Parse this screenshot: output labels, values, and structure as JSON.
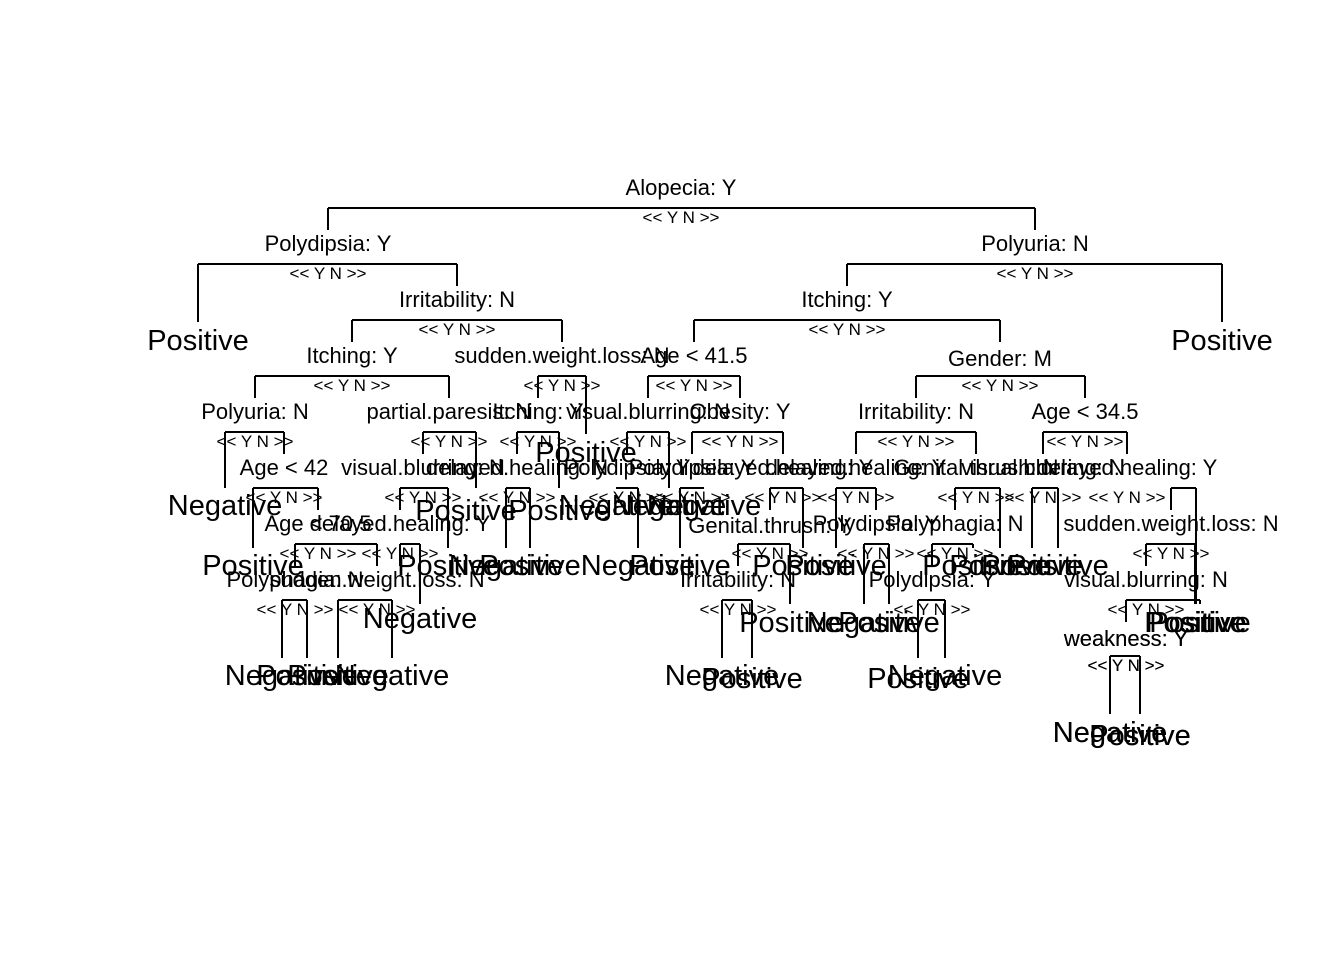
{
  "branch_label": "<< Y N >>",
  "nodes": [
    {
      "id": "n1",
      "label": "Alopecia: Y",
      "children": [
        "n2",
        "n3"
      ]
    },
    {
      "id": "n2",
      "label": "Polydipsia: Y",
      "children": [
        "l_pos_a",
        "n4"
      ]
    },
    {
      "id": "n3",
      "label": "Polyuria: N",
      "children": [
        "n5",
        "l_pos_b"
      ]
    },
    {
      "id": "n4",
      "label": "Irritability: N",
      "children": [
        "n6",
        "n7"
      ]
    },
    {
      "id": "n5",
      "label": "Itching: Y",
      "children": [
        "n8",
        "n9"
      ]
    },
    {
      "id": "n6",
      "label": "Itching: Y",
      "children": [
        "n10",
        "n11"
      ]
    },
    {
      "id": "n7",
      "label": "sudden.weight.loss: N",
      "children": [
        "n12",
        "l7"
      ]
    },
    {
      "id": "n8",
      "label": "Age < 41.5",
      "children": [
        "n13",
        "n14"
      ]
    },
    {
      "id": "n9",
      "label": "Gender: M",
      "children": [
        "n15",
        "n16"
      ]
    },
    {
      "id": "n10",
      "label": "Polyuria: N",
      "children": [
        "l10a",
        "n17"
      ]
    },
    {
      "id": "n11",
      "label": "partial.paresis: N",
      "children": [
        "n18",
        "l11"
      ]
    },
    {
      "id": "n12",
      "label": "Itching: Y",
      "children": [
        "n19",
        "l12"
      ]
    },
    {
      "id": "n13",
      "label": "visual.blurring: N",
      "children": [
        "n20",
        "l13"
      ]
    },
    {
      "id": "n14",
      "label": "Obesity: Y",
      "children": [
        "n21",
        "n22"
      ]
    },
    {
      "id": "n15",
      "label": "Irritability: N",
      "children": [
        "n23",
        "n24"
      ]
    },
    {
      "id": "n16",
      "label": "Age < 34.5",
      "children": [
        "n25",
        "n26"
      ]
    },
    {
      "id": "n17",
      "label": "Age < 42",
      "children": [
        "l17",
        "n27"
      ]
    },
    {
      "id": "n18",
      "label": "visual.blurring: N",
      "children": [
        "n28",
        "l18"
      ]
    },
    {
      "id": "n19",
      "label": "delayed.healing: N",
      "children": [
        "l19a",
        "l19b"
      ]
    },
    {
      "id": "n20",
      "label": "Polydipsia: Y",
      "children": [
        "l20a",
        "l20b"
      ]
    },
    {
      "id": "n21",
      "label": "Polydipsia: Y",
      "children": [
        "l21a",
        "l21b"
      ]
    },
    {
      "id": "n22",
      "label": "delayed.healing: Y",
      "children": [
        "n29",
        "l22"
      ]
    },
    {
      "id": "n23",
      "label": "delayed.healing: Y",
      "children": [
        "l23a",
        "n30"
      ]
    },
    {
      "id": "n24",
      "label": "Genital.thrush: N",
      "children": [
        "n31",
        "l24"
      ]
    },
    {
      "id": "n25",
      "label": "visual.blurring: N",
      "children": [
        "l25a",
        "l25b"
      ]
    },
    {
      "id": "n26",
      "label": "delayed.healing: Y",
      "children": [
        "n32",
        "l26"
      ]
    },
    {
      "id": "n27",
      "label": "Age < 70.5",
      "children": [
        "n33",
        "n34"
      ]
    },
    {
      "id": "n28",
      "label": "delayed.healing: Y",
      "children": [
        "n35",
        "l28"
      ]
    },
    {
      "id": "n29",
      "label": "Genital.thrush: Y",
      "children": [
        "n36",
        "l29"
      ]
    },
    {
      "id": "n30",
      "label": "Polydipsia: Y",
      "children": [
        "l30a",
        "l30b"
      ]
    },
    {
      "id": "n31",
      "label": "Polyphagia: N",
      "children": [
        "n37",
        "l31"
      ]
    },
    {
      "id": "n32",
      "label": "sudden.weight.loss: N",
      "children": [
        "n38",
        "l32"
      ]
    },
    {
      "id": "n33",
      "label": "Polyphagia: N",
      "children": [
        "l33a",
        "l33b"
      ]
    },
    {
      "id": "n34",
      "label": "sudden.weight.loss: N",
      "children": [
        "l34a",
        "l34b"
      ]
    },
    {
      "id": "n35",
      "label": "Irritability: N",
      "children": [
        "l35a",
        "l35b"
      ]
    },
    {
      "id": "n36",
      "label": "Polydipsia: Y",
      "children": [
        "l36a",
        "l36b"
      ]
    },
    {
      "id": "n37",
      "label": "visual.blurring: N",
      "children": [
        "n39",
        "l37"
      ]
    },
    {
      "id": "n38",
      "label": "weakness: Y",
      "children": [
        "l38a",
        "l38b"
      ]
    },
    {
      "id": "n39",
      "label": "weakness: Y",
      "children": [
        "l39a",
        "l39b"
      ]
    }
  ],
  "leaves": [
    {
      "id": "l_pos_a",
      "label": "Positive"
    },
    {
      "id": "l_pos_b",
      "label": "Positive"
    },
    {
      "id": "l7",
      "label": "Positive"
    },
    {
      "id": "l10a",
      "label": "Negative"
    },
    {
      "id": "l11",
      "label": "Positive"
    },
    {
      "id": "l12",
      "label": "Positive"
    },
    {
      "id": "l13",
      "label": "Negative"
    },
    {
      "id": "l17",
      "label": "Positive"
    },
    {
      "id": "l18",
      "label": "Positive"
    },
    {
      "id": "l19a",
      "label": "Negative"
    },
    {
      "id": "l19b",
      "label": "Positive"
    },
    {
      "id": "l20a",
      "label": "Negative"
    },
    {
      "id": "l20b",
      "label": "Negative"
    },
    {
      "id": "l21a",
      "label": "Positive"
    },
    {
      "id": "l21b",
      "label": "Negative"
    },
    {
      "id": "l22",
      "label": "Positive"
    },
    {
      "id": "l23a",
      "label": "Positive"
    },
    {
      "id": "l24",
      "label": "Positive"
    },
    {
      "id": "l25a",
      "label": "Positive"
    },
    {
      "id": "l25b",
      "label": "Positive"
    },
    {
      "id": "l26",
      "label": "Positive"
    },
    {
      "id": "l28",
      "label": "Negative"
    },
    {
      "id": "l29",
      "label": "Positive"
    },
    {
      "id": "l30a",
      "label": "Negative"
    },
    {
      "id": "l30b",
      "label": "Positive"
    },
    {
      "id": "l31",
      "label": "Positive"
    },
    {
      "id": "l32",
      "label": "Positive"
    },
    {
      "id": "l33a",
      "label": "Negative"
    },
    {
      "id": "l33b",
      "label": "Positive"
    },
    {
      "id": "l34a",
      "label": "Positive"
    },
    {
      "id": "l34b",
      "label": "Negative"
    },
    {
      "id": "l35a",
      "label": "Negative"
    },
    {
      "id": "l35b",
      "label": "Positive"
    },
    {
      "id": "l36a",
      "label": "Positive"
    },
    {
      "id": "l36b",
      "label": "Negative"
    },
    {
      "id": "l37",
      "label": "Positive"
    },
    {
      "id": "l38a",
      "label": "Negative"
    },
    {
      "id": "l38b",
      "label": "Positive"
    },
    {
      "id": "l39a",
      "label": "Negative"
    },
    {
      "id": "l39b",
      "label": "Positive"
    }
  ]
}
